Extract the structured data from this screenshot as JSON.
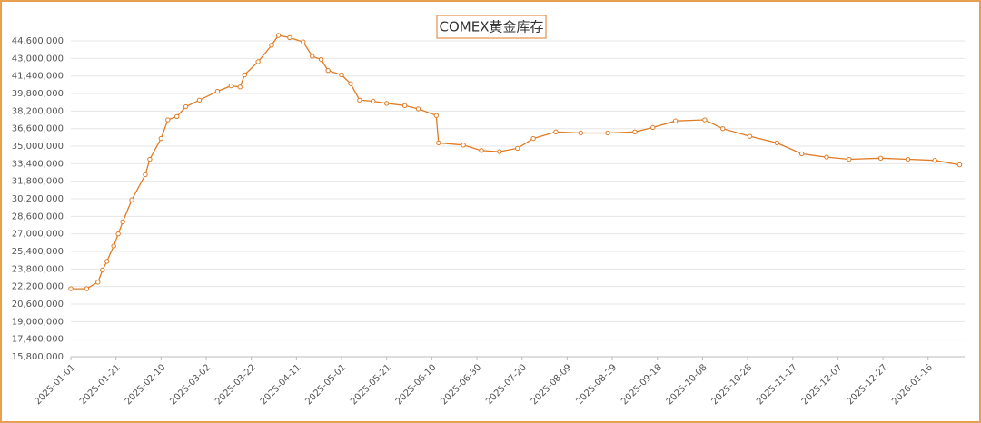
{
  "chart_data": {
    "type": "line",
    "title": "COMEX黄金库存",
    "x": [
      "2025-01-01",
      "2025-01-08",
      "2025-01-13",
      "2025-01-15",
      "2025-01-17",
      "2025-01-20",
      "2025-01-22",
      "2025-01-24",
      "2025-01-28",
      "2025-02-03",
      "2025-02-05",
      "2025-02-10",
      "2025-02-13",
      "2025-02-17",
      "2025-02-21",
      "2025-02-27",
      "2025-03-07",
      "2025-03-13",
      "2025-03-17",
      "2025-03-19",
      "2025-03-25",
      "2025-03-31",
      "2025-04-03",
      "2025-04-08",
      "2025-04-14",
      "2025-04-18",
      "2025-04-22",
      "2025-04-25",
      "2025-05-01",
      "2025-05-05",
      "2025-05-09",
      "2025-05-15",
      "2025-05-21",
      "2025-05-29",
      "2025-06-04",
      "2025-06-12",
      "2025-06-13",
      "2025-06-24",
      "2025-07-02",
      "2025-07-10",
      "2025-07-18",
      "2025-07-25",
      "2025-08-04",
      "2025-08-15",
      "2025-08-27",
      "2025-09-08",
      "2025-09-16",
      "2025-09-26",
      "2025-10-09",
      "2025-10-17",
      "2025-10-29",
      "2025-11-10",
      "2025-11-21",
      "2025-12-02",
      "2025-12-12",
      "2025-12-26",
      "2026-01-07",
      "2026-01-19",
      "2026-01-30"
    ],
    "series": [
      {
        "name": "COMEX黄金库存",
        "color": "#e07b24",
        "values": [
          22000000,
          22000000,
          22600000,
          23700000,
          24500000,
          25900000,
          27000000,
          28100000,
          30100000,
          32400000,
          33800000,
          35700000,
          37400000,
          37700000,
          38600000,
          39200000,
          40000000,
          40500000,
          40400000,
          41500000,
          42700000,
          44200000,
          45100000,
          44900000,
          44500000,
          43200000,
          42900000,
          41900000,
          41500000,
          40700000,
          39200000,
          39100000,
          38900000,
          38700000,
          38400000,
          37800000,
          35300000,
          35100000,
          34600000,
          34500000,
          34800000,
          35700000,
          36300000,
          36200000,
          36200000,
          36300000,
          36700000,
          37300000,
          37400000,
          36600000,
          35900000,
          35300000,
          34300000,
          34000000,
          33800000,
          33900000,
          33800000,
          33700000,
          33300000
        ]
      }
    ],
    "xlim": [
      "2025-01-01",
      "2026-01-31"
    ],
    "xticks": [
      "2025-01-01",
      "2025-01-21",
      "2025-02-10",
      "2025-03-02",
      "2025-03-22",
      "2025-04-11",
      "2025-05-01",
      "2025-05-21",
      "2025-06-10",
      "2025-06-30",
      "2025-07-20",
      "2025-08-09",
      "2025-08-29",
      "2025-09-18",
      "2025-10-08",
      "2025-10-28",
      "2025-11-17",
      "2025-12-07",
      "2025-12-27",
      "2026-01-16"
    ],
    "ylim": [
      15800000,
      46200000
    ],
    "yticks": [
      {
        "value": 15800000,
        "label": "15,800,000"
      },
      {
        "value": 17400000,
        "label": "17,400,000"
      },
      {
        "value": 19000000,
        "label": "19,000,000"
      },
      {
        "value": 20600000,
        "label": "20,600,000"
      },
      {
        "value": 22200000,
        "label": "22,200,000"
      },
      {
        "value": 23800000,
        "label": "23,800,000"
      },
      {
        "value": 25400000,
        "label": "25,400,000"
      },
      {
        "value": 27000000,
        "label": "27,000,000"
      },
      {
        "value": 28600000,
        "label": "28,600,000"
      },
      {
        "value": 30200000,
        "label": "30,200,000"
      },
      {
        "value": 31800000,
        "label": "31,800,000"
      },
      {
        "value": 33400000,
        "label": "33,400,000"
      },
      {
        "value": 35000000,
        "label": "35,000,000"
      },
      {
        "value": 36600000,
        "label": "36,600,000"
      },
      {
        "value": 38200000,
        "label": "38,200,000"
      },
      {
        "value": 39800000,
        "label": "39,800,000"
      },
      {
        "value": 41400000,
        "label": "41,400,000"
      },
      {
        "value": 43000000,
        "label": "43,000,000"
      },
      {
        "value": 44600000,
        "label": "44,600,000"
      }
    ],
    "grid": true
  }
}
